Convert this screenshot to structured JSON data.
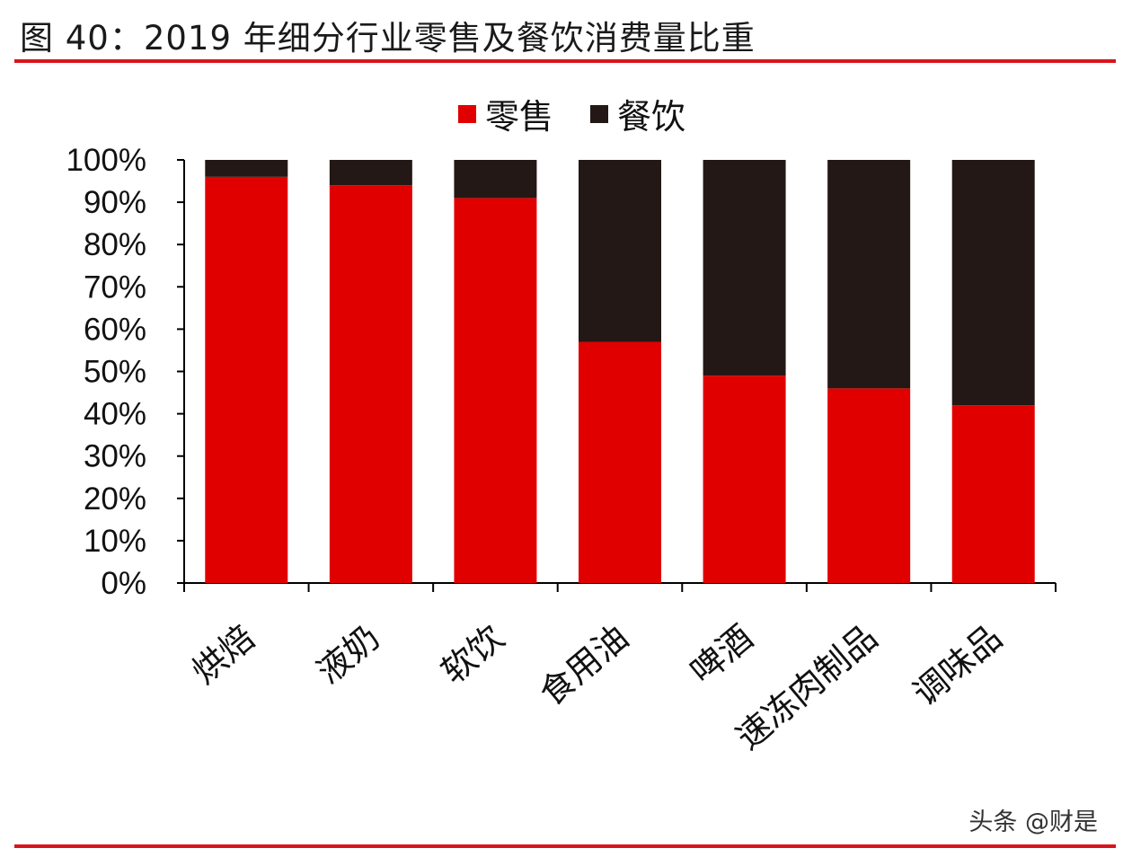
{
  "title": "图 40：2019 年细分行业零售及餐饮消费量比重",
  "watermark": "头条 @财是",
  "colors": {
    "retail": "#e00000",
    "catering": "#231815",
    "rule": "#d9141c"
  },
  "chart_data": {
    "type": "bar",
    "stacked": true,
    "categories": [
      "烘焙",
      "液奶",
      "软饮",
      "食用油",
      "啤酒",
      "速冻肉制品",
      "调味品"
    ],
    "series": [
      {
        "name": "零售",
        "values": [
          96,
          94,
          91,
          57,
          49,
          46,
          42
        ]
      },
      {
        "name": "餐饮",
        "values": [
          4,
          6,
          9,
          43,
          51,
          54,
          58
        ]
      }
    ],
    "yticks": [
      "0%",
      "10%",
      "20%",
      "30%",
      "40%",
      "50%",
      "60%",
      "70%",
      "80%",
      "90%",
      "100%"
    ],
    "ylim": [
      0,
      100
    ],
    "legend": "top",
    "grid": false
  }
}
